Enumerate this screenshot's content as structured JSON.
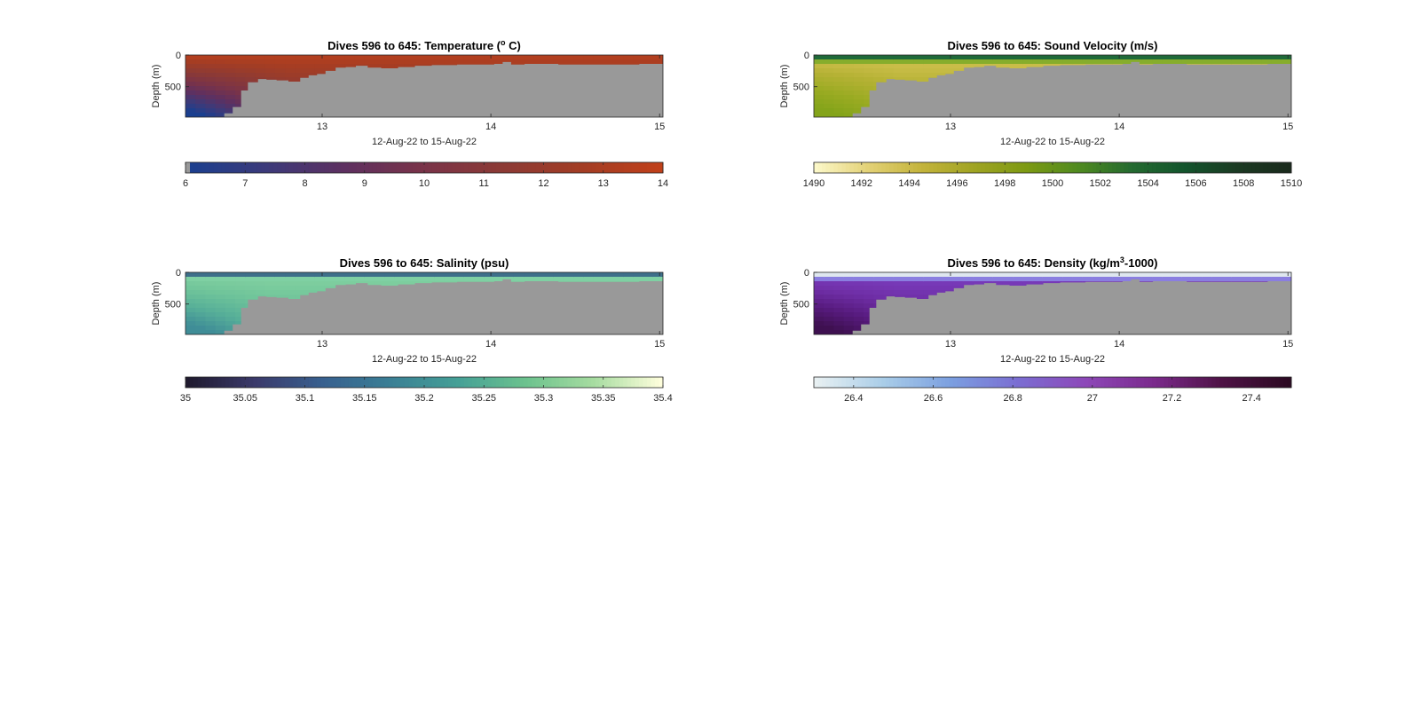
{
  "figure": {
    "background": "#ffffff"
  },
  "chart_data": [
    {
      "type": "heatmap",
      "variable": "temperature",
      "title_parts": [
        "Dives 596 to 645: Temperature (",
        "o",
        " C)"
      ],
      "xlabel": "12-Aug-22 to 15-Aug-22",
      "ylabel": "Depth (m)",
      "xlim": [
        12.19,
        15.02
      ],
      "ylim": [
        0,
        980
      ],
      "xticks": [
        13,
        14,
        15
      ],
      "xtick_labels": [
        "13",
        "14",
        "15"
      ],
      "yticks": [
        0,
        500
      ],
      "ytick_labels": [
        "0",
        "500"
      ],
      "colorbar": {
        "range": [
          6,
          14
        ],
        "ticks": [
          6,
          7,
          8,
          9,
          10,
          11,
          12,
          13,
          14
        ],
        "tick_labels": [
          "6",
          "7",
          "8",
          "9",
          "10",
          "11",
          "12",
          "13",
          "14"
        ],
        "colors": [
          "#1a3f8f",
          "#3c3a7a",
          "#5e3060",
          "#7a3348",
          "#8c3a35",
          "#a33d24",
          "#c0401a"
        ]
      },
      "mask_color": "#999999",
      "surface_fraction_series": [
        0.98,
        0.97,
        0.96,
        0.93,
        0.9,
        0.87,
        0.82,
        0.79,
        0.76,
        0.74,
        0.73,
        0.72,
        0.72
      ],
      "deep_color_fraction": 0.05,
      "bottom_depth_profile": {
        "days": [
          12.19,
          12.3,
          12.42,
          12.47,
          12.52,
          12.56,
          12.62,
          12.67,
          12.73,
          12.8,
          12.87,
          12.92,
          12.97,
          13.02,
          13.08,
          13.14,
          13.2,
          13.27,
          13.35,
          13.45,
          13.55,
          13.65,
          13.72,
          13.8,
          13.88,
          13.95,
          14.02,
          14.07,
          14.12,
          14.2,
          14.3,
          14.4,
          14.5,
          14.6,
          14.7,
          14.8,
          14.88,
          14.95,
          15.02
        ],
        "depths": [
          980,
          980,
          920,
          820,
          560,
          430,
          380,
          390,
          400,
          420,
          360,
          320,
          300,
          250,
          200,
          190,
          170,
          200,
          210,
          190,
          170,
          160,
          160,
          150,
          150,
          150,
          140,
          110,
          150,
          140,
          140,
          150,
          150,
          150,
          150,
          150,
          140,
          140,
          140
        ]
      }
    },
    {
      "type": "heatmap",
      "variable": "sound_velocity",
      "title_parts": [
        "Dives 596 to 645: Sound Velocity (m/s)",
        "",
        ""
      ],
      "xlabel": "12-Aug-22 to 15-Aug-22",
      "ylabel": "Depth (m)",
      "xlim": [
        12.19,
        15.02
      ],
      "ylim": [
        0,
        980
      ],
      "xticks": [
        13,
        14,
        15
      ],
      "xtick_labels": [
        "13",
        "14",
        "15"
      ],
      "yticks": [
        0,
        500
      ],
      "ytick_labels": [
        "0",
        "500"
      ],
      "colorbar": {
        "range": [
          1490,
          1510
        ],
        "ticks": [
          1490,
          1492,
          1494,
          1496,
          1498,
          1500,
          1502,
          1504,
          1506,
          1508,
          1510
        ],
        "tick_labels": [
          "1490",
          "1492",
          "1494",
          "1496",
          "1498",
          "1500",
          "1502",
          "1504",
          "1506",
          "1508",
          "1510"
        ],
        "colors": [
          "#fcf8c8",
          "#e3d176",
          "#c4b43c",
          "#a0a423",
          "#7d9a13",
          "#4f8a20",
          "#246a30",
          "#13552d",
          "#1b3a23",
          "#1a2a1c"
        ]
      },
      "mask_color": "#999999",
      "surface_band_colors": [
        "#1f6a3a",
        "#86ad2c",
        "#cdbb4b",
        "#d2c25a"
      ],
      "body_colors": [
        "#d5c454",
        "#b6b235",
        "#9aab22",
        "#84a41a"
      ],
      "bottom_depth_profile": {
        "days": [
          12.19,
          12.3,
          12.42,
          12.47,
          12.52,
          12.56,
          12.62,
          12.67,
          12.73,
          12.8,
          12.87,
          12.92,
          12.97,
          13.02,
          13.08,
          13.14,
          13.2,
          13.27,
          13.35,
          13.45,
          13.55,
          13.65,
          13.72,
          13.8,
          13.88,
          13.95,
          14.02,
          14.07,
          14.12,
          14.2,
          14.3,
          14.4,
          14.5,
          14.6,
          14.7,
          14.8,
          14.88,
          14.95,
          15.02
        ],
        "depths": [
          980,
          980,
          920,
          820,
          560,
          430,
          380,
          390,
          400,
          420,
          360,
          320,
          300,
          250,
          200,
          190,
          170,
          200,
          210,
          190,
          170,
          160,
          160,
          150,
          150,
          150,
          140,
          110,
          150,
          140,
          140,
          150,
          150,
          150,
          150,
          150,
          140,
          140,
          140
        ]
      }
    },
    {
      "type": "heatmap",
      "variable": "salinity",
      "title_parts": [
        "Dives 596 to 645: Salinity (psu)",
        "",
        ""
      ],
      "xlabel": "12-Aug-22 to 15-Aug-22",
      "ylabel": "Depth (m)",
      "xlim": [
        12.19,
        15.02
      ],
      "ylim": [
        0,
        980
      ],
      "xticks": [
        13,
        14,
        15
      ],
      "xtick_labels": [
        "13",
        "14",
        "15"
      ],
      "yticks": [
        0,
        500
      ],
      "ytick_labels": [
        "0",
        "500"
      ],
      "colorbar": {
        "range": [
          35,
          35.4
        ],
        "ticks": [
          35,
          35.05,
          35.1,
          35.15,
          35.2,
          35.25,
          35.3,
          35.35,
          35.4
        ],
        "tick_labels": [
          "35",
          "35.05",
          "35.1",
          "35.15",
          "35.2",
          "35.25",
          "35.3",
          "35.35",
          "35.4"
        ],
        "colors": [
          "#1f1a2e",
          "#3b3a6b",
          "#38608f",
          "#3a7f95",
          "#45a096",
          "#6cc28e",
          "#a6dca0",
          "#fefedc"
        ]
      },
      "mask_color": "#999999",
      "surface_band_colors": [
        "#3e6f8a",
        "#7fd0a3",
        "#8ed6a5",
        "#86d3a2"
      ],
      "body_colors": [
        "#85d2a1",
        "#6fc49a",
        "#56ae98",
        "#3f8d97"
      ],
      "bottom_depth_profile": {
        "days": [
          12.19,
          12.3,
          12.42,
          12.47,
          12.52,
          12.56,
          12.62,
          12.67,
          12.73,
          12.8,
          12.87,
          12.92,
          12.97,
          13.02,
          13.08,
          13.14,
          13.2,
          13.27,
          13.35,
          13.45,
          13.55,
          13.65,
          13.72,
          13.8,
          13.88,
          13.95,
          14.02,
          14.07,
          14.12,
          14.2,
          14.3,
          14.4,
          14.5,
          14.6,
          14.7,
          14.8,
          14.88,
          14.95,
          15.02
        ],
        "depths": [
          980,
          980,
          920,
          820,
          560,
          430,
          380,
          390,
          400,
          420,
          360,
          320,
          300,
          250,
          200,
          190,
          170,
          200,
          210,
          190,
          170,
          160,
          160,
          150,
          150,
          150,
          140,
          110,
          150,
          140,
          140,
          150,
          150,
          150,
          150,
          150,
          140,
          140,
          140
        ]
      }
    },
    {
      "type": "heatmap",
      "variable": "density",
      "title_parts": [
        "Dives 596 to 645: Density (kg/m",
        "3",
        "-1000)"
      ],
      "xlabel": "12-Aug-22 to 15-Aug-22",
      "ylabel": "Depth (m)",
      "xlim": [
        12.19,
        15.02
      ],
      "ylim": [
        0,
        980
      ],
      "xticks": [
        13,
        14,
        15
      ],
      "xtick_labels": [
        "13",
        "14",
        "15"
      ],
      "yticks": [
        0,
        500
      ],
      "ytick_labels": [
        "0",
        "500"
      ],
      "colorbar": {
        "range": [
          26.3,
          27.5
        ],
        "ticks": [
          26.4,
          26.6,
          26.8,
          27,
          27.2,
          27.4
        ],
        "tick_labels": [
          "26.4",
          "26.6",
          "26.8",
          "27",
          "27.2",
          "27.4"
        ],
        "colors": [
          "#e8f0f2",
          "#a9cde8",
          "#7b9fe0",
          "#7b6dd2",
          "#8d47b8",
          "#7b2a8c",
          "#4e1245",
          "#2c0a22"
        ]
      },
      "mask_color": "#999999",
      "surface_band_colors": [
        "#dfe7ef",
        "#8a7ee0",
        "#7d46c5",
        "#7d40c2"
      ],
      "body_colors": [
        "#7c3fc1",
        "#6f2ea6",
        "#561a7c",
        "#3e1050"
      ],
      "bottom_depth_profile": {
        "days": [
          12.19,
          12.3,
          12.42,
          12.47,
          12.52,
          12.56,
          12.62,
          12.67,
          12.73,
          12.8,
          12.87,
          12.92,
          12.97,
          13.02,
          13.08,
          13.14,
          13.2,
          13.27,
          13.35,
          13.45,
          13.55,
          13.65,
          13.72,
          13.8,
          13.88,
          13.95,
          14.02,
          14.07,
          14.12,
          14.2,
          14.3,
          14.4,
          14.5,
          14.6,
          14.7,
          14.8,
          14.88,
          14.95,
          15.02
        ],
        "depths": [
          980,
          980,
          920,
          820,
          560,
          430,
          380,
          390,
          400,
          420,
          360,
          320,
          300,
          250,
          200,
          190,
          170,
          200,
          210,
          190,
          170,
          160,
          160,
          150,
          150,
          150,
          140,
          110,
          150,
          140,
          140,
          150,
          150,
          150,
          150,
          150,
          140,
          140,
          140
        ]
      }
    }
  ]
}
